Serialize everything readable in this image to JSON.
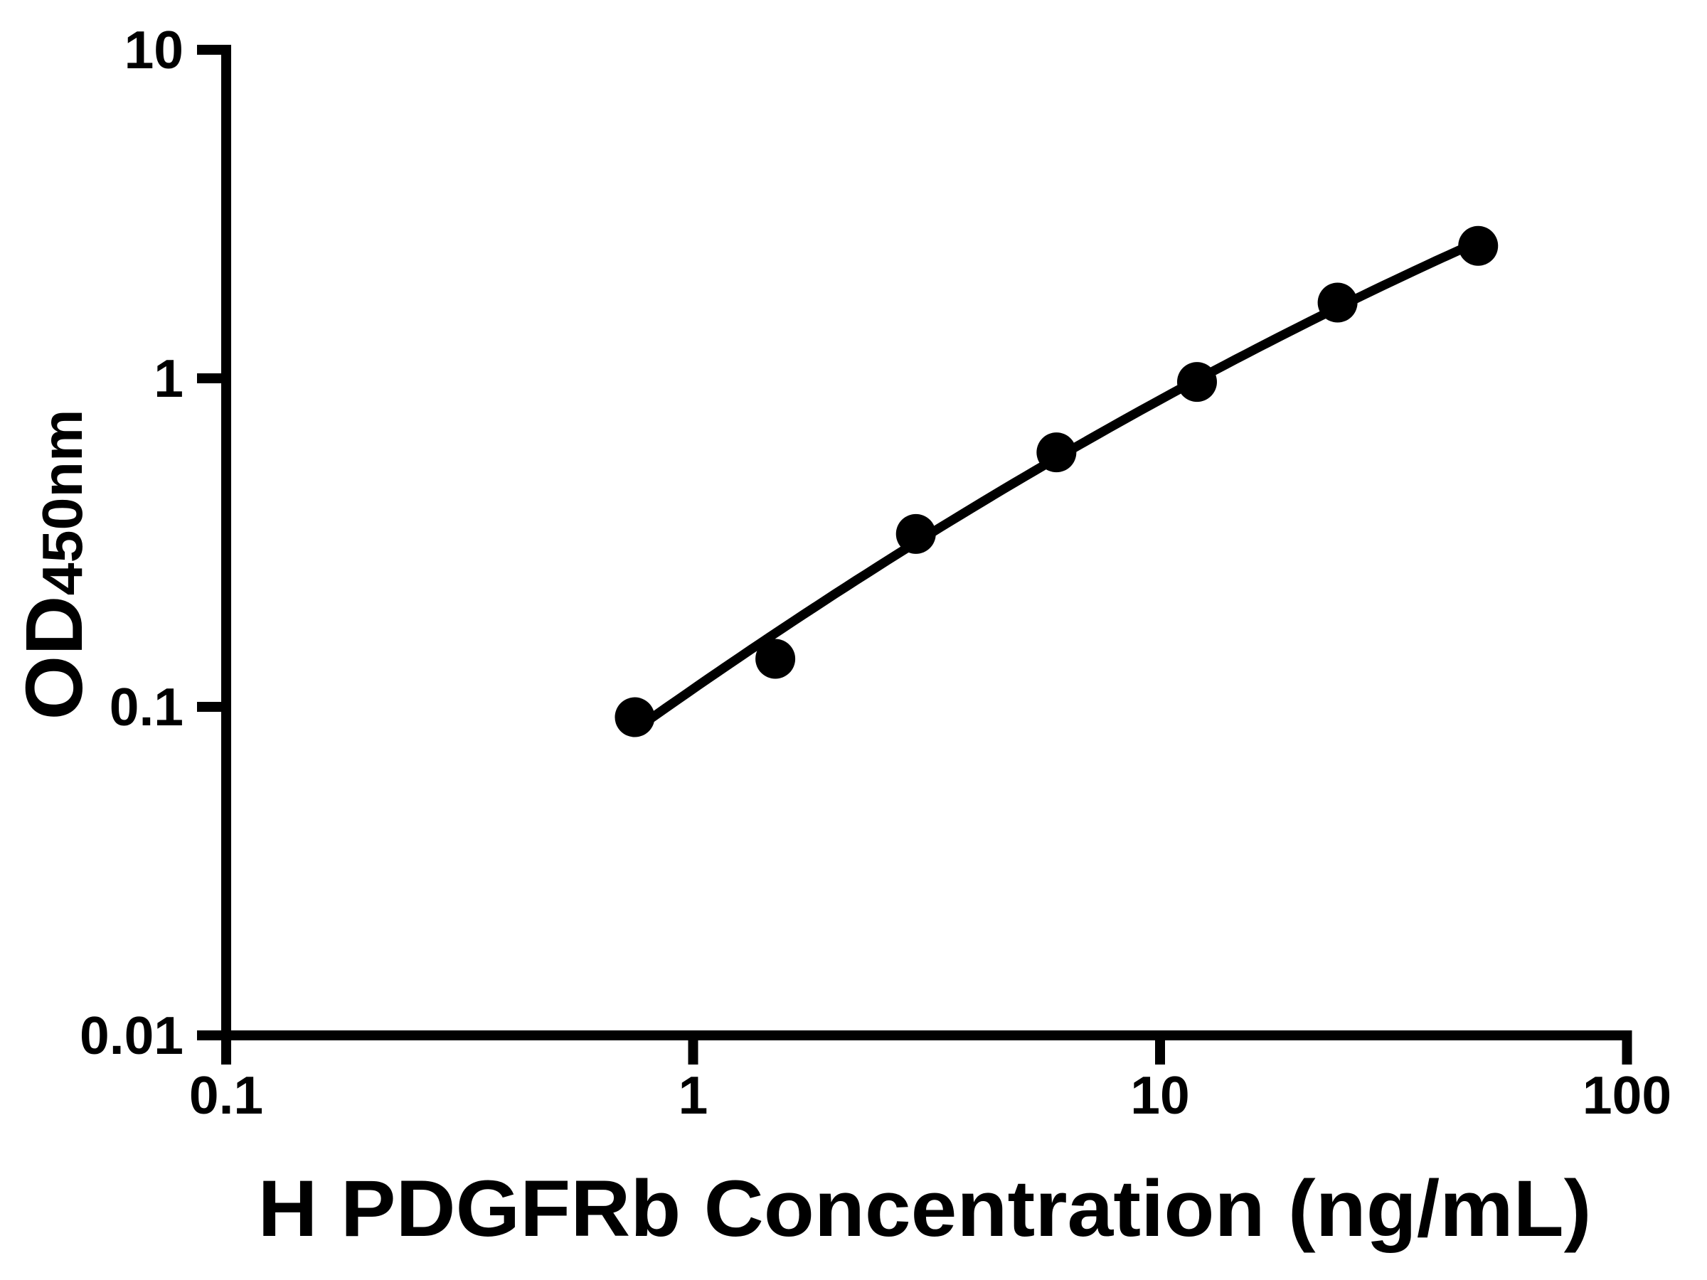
{
  "chart_data": {
    "type": "scatter",
    "title": "",
    "xlabel": "H PDGFRb Concentration (ng/mL)",
    "ylabel_main": "OD",
    "ylabel_sub": "450nm",
    "x": [
      0.75,
      1.5,
      3,
      6,
      12,
      24,
      48
    ],
    "y": [
      0.093,
      0.14,
      0.336,
      0.595,
      0.975,
      1.7,
      2.53
    ],
    "xscale": "log",
    "yscale": "log",
    "xlim": [
      0.1,
      100
    ],
    "ylim": [
      0.01,
      10
    ],
    "x_ticks": [
      {
        "value": 0.1,
        "label": "0.1"
      },
      {
        "value": 1,
        "label": "1"
      },
      {
        "value": 10,
        "label": "10"
      },
      {
        "value": 100,
        "label": "100"
      }
    ],
    "y_ticks": [
      {
        "value": 0.01,
        "label": "0.01"
      },
      {
        "value": 0.1,
        "label": "0.1"
      },
      {
        "value": 1,
        "label": "1"
      },
      {
        "value": 10,
        "label": "10"
      }
    ],
    "grid": false,
    "legend": null,
    "fit_curve": "quadratic-loglog",
    "marker_color": "#000000",
    "line_color": "#000000",
    "axis_color": "#000000",
    "background_color": "#ffffff"
  }
}
